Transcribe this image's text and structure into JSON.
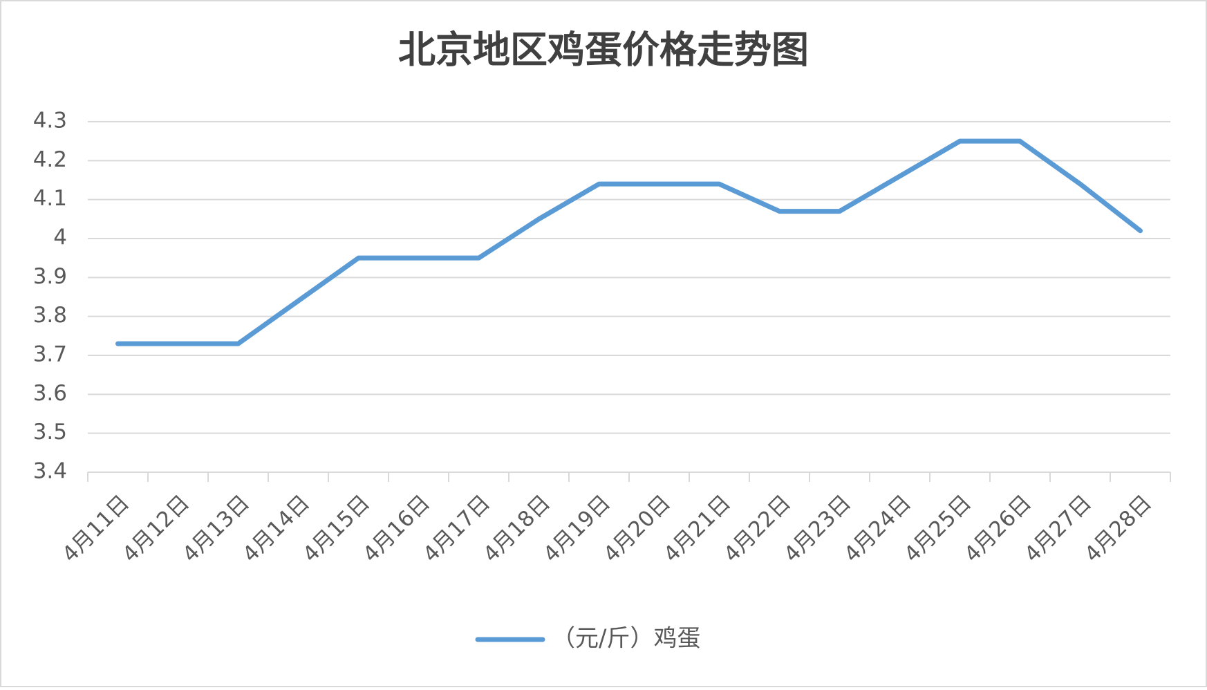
{
  "chart_data": {
    "type": "line",
    "title": "北京地区鸡蛋价格走势图",
    "categories": [
      "4月11日",
      "4月12日",
      "4月13日",
      "4月14日",
      "4月15日",
      "4月16日",
      "4月17日",
      "4月18日",
      "4月19日",
      "4月20日",
      "4月21日",
      "4月22日",
      "4月23日",
      "4月24日",
      "4月25日",
      "4月26日",
      "4月27日",
      "4月28日"
    ],
    "series": [
      {
        "name": "（元/斤）鸡蛋",
        "color": "#5b9bd5",
        "values": [
          3.73,
          3.73,
          3.73,
          3.84,
          3.95,
          3.95,
          3.95,
          4.05,
          4.14,
          4.14,
          4.14,
          4.07,
          4.07,
          4.16,
          4.25,
          4.25,
          4.14,
          4.02
        ]
      }
    ],
    "ylim": [
      3.4,
      4.3
    ],
    "yticks": [
      3.4,
      3.5,
      3.6,
      3.7,
      3.8,
      3.9,
      4,
      4.1,
      4.2,
      4.3
    ],
    "grid": true,
    "legend": "bottom"
  }
}
